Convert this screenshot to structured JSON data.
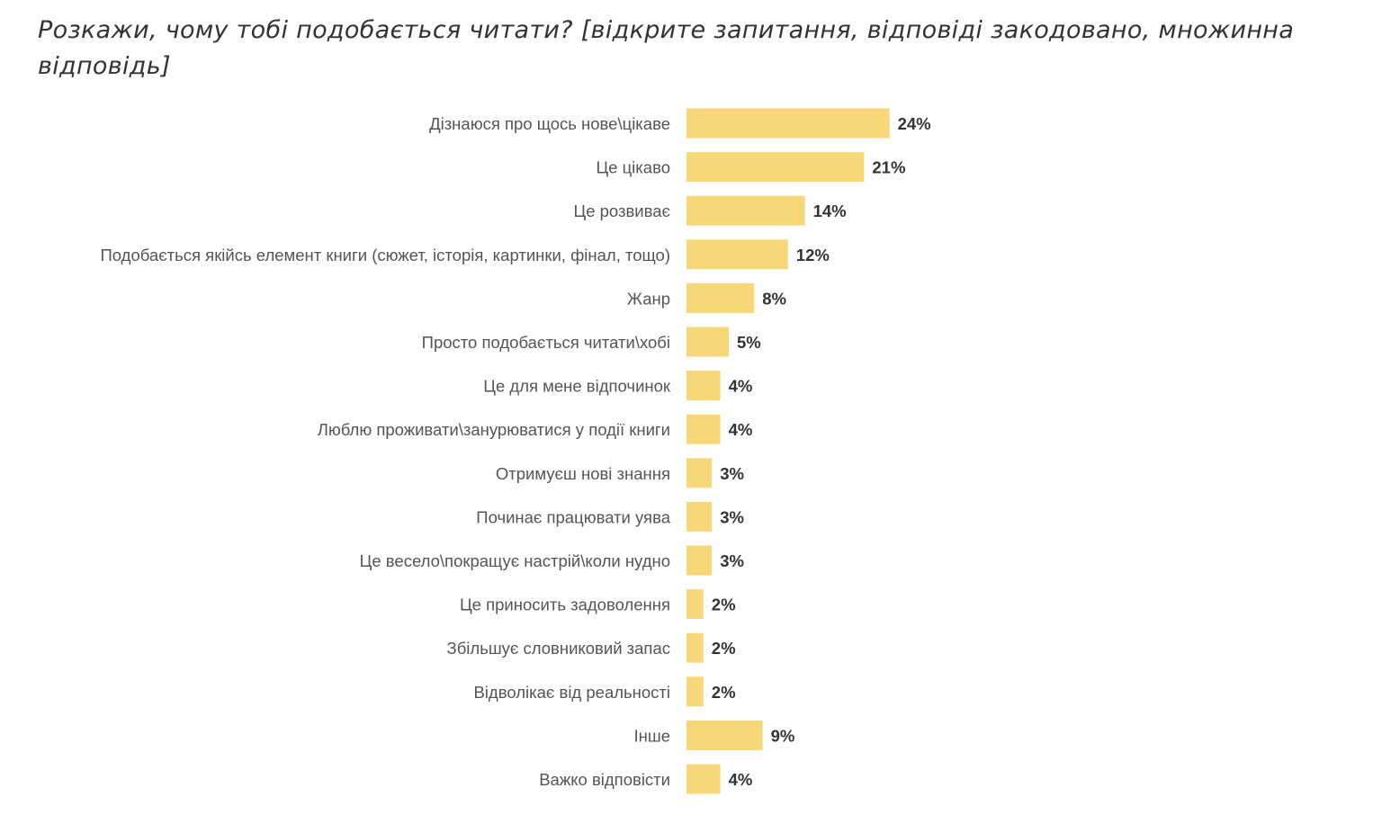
{
  "chart_data": {
    "type": "bar",
    "orientation": "horizontal",
    "title": "Розкажи, чому тобі подобається читати? [відкрите запитання, відповіді закодовано, множинна відповідь]",
    "categories": [
      "Дізнаюся про щось нове\\цікаве",
      "Це цікаво",
      "Це розвиває",
      "Подобається якійсь елемент книги (сюжет, історія, картинки, фінал, тощо)",
      "Жанр",
      "Просто подобається читати\\хобі",
      "Це для мене відпочинок",
      "Люблю проживати\\занурюватися  у події книги",
      "Отримуєш нові знання",
      "Починає працювати уява",
      "Це весело\\покращує настрій\\коли нудно",
      "Це приносить задоволення",
      "Збільшує словниковий запас",
      "Відволікає від реальності",
      "Інше",
      "Важко відповісти"
    ],
    "values": [
      24,
      21,
      14,
      12,
      8,
      5,
      4,
      4,
      3,
      3,
      3,
      2,
      2,
      2,
      9,
      4
    ],
    "value_labels": [
      "24%",
      "21%",
      "14%",
      "12%",
      "8%",
      "5%",
      "4%",
      "4%",
      "3%",
      "3%",
      "3%",
      "2%",
      "2%",
      "2%",
      "9%",
      "4%"
    ],
    "unit": "%",
    "bar_color": "#F8D778",
    "grid": false,
    "legend": "none"
  }
}
